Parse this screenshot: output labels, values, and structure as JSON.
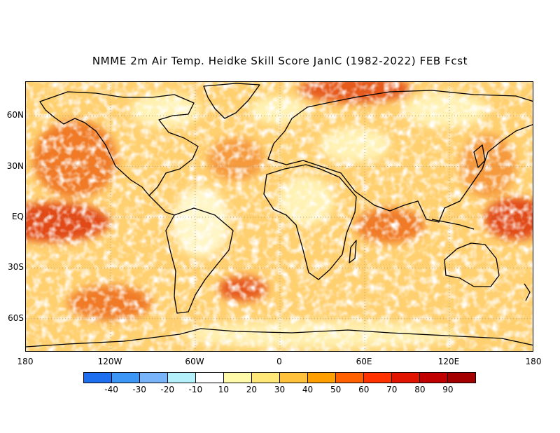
{
  "title": "NMME 2m Air Temp. Heidke Skill Score JanIC (1982-2022) FEB Fcst",
  "map": {
    "lat_labels": [
      "60N",
      "30N",
      "EQ",
      "30S",
      "60S"
    ],
    "lat_values": [
      60,
      30,
      0,
      -30,
      -60
    ],
    "lat_range": [
      -80,
      80
    ],
    "lon_labels": [
      "180",
      "120W",
      "60W",
      "0",
      "60E",
      "120E",
      "180"
    ],
    "lon_values": [
      -180,
      -120,
      -60,
      0,
      60,
      120,
      180
    ],
    "lon_range": [
      -180,
      180
    ]
  },
  "colorbar": {
    "colors": [
      "#1e6ef0",
      "#3c96f5",
      "#78b4fa",
      "#b4f0fa",
      "#ffffff",
      "#fffaaa",
      "#ffe878",
      "#ffc03c",
      "#ffa000",
      "#ff6000",
      "#ff3200",
      "#e11400",
      "#c00000",
      "#a50000"
    ],
    "tick_labels": [
      "-40",
      "-30",
      "-20",
      "-10",
      "10",
      "20",
      "30",
      "40",
      "50",
      "60",
      "70",
      "80",
      "90"
    ]
  }
}
